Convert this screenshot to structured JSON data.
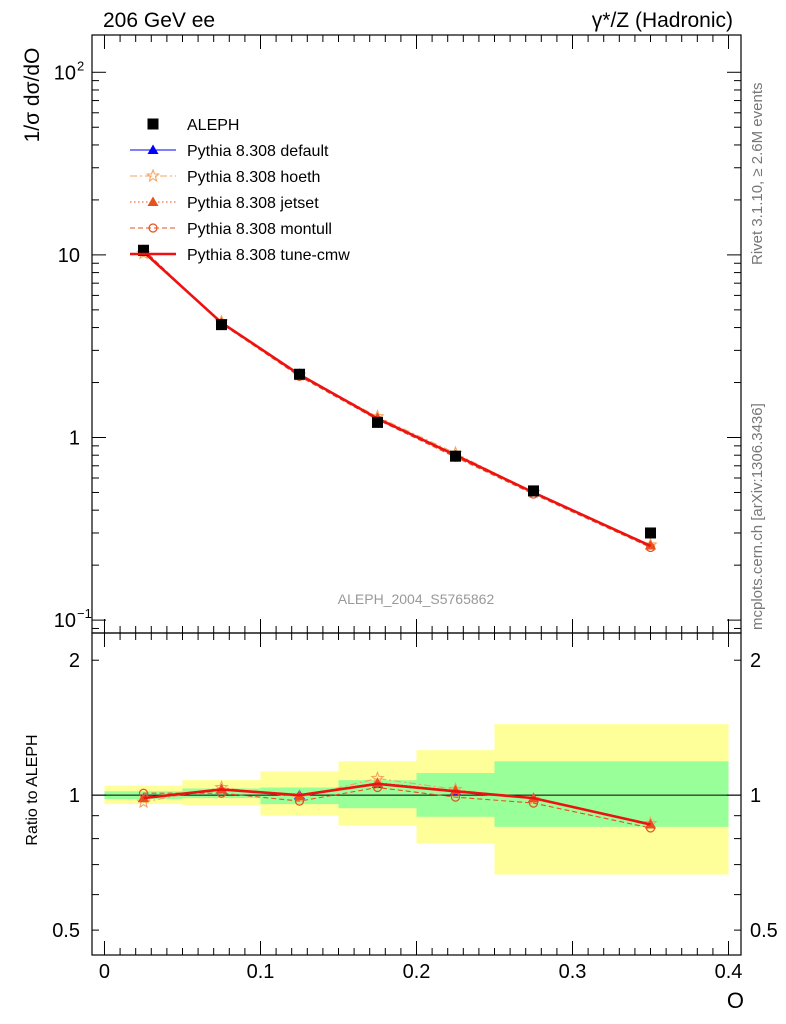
{
  "header": {
    "left_label": "206 GeV ee",
    "right_label": "γ*/Z (Hadronic)"
  },
  "side_labels": {
    "rivet": "Rivet 3.1.10, ≥ 2.6M events",
    "mcplots": "mcplots.cern.ch [arXiv:1306.3436]"
  },
  "watermark": "ALEPH_2004_S5765862",
  "chart_data": [
    {
      "type": "line",
      "panel": "main",
      "ylabel": "1/σ  dσ/dO",
      "yscale": "log",
      "ylim": [
        0.085,
        160
      ],
      "xlim": [
        -0.008,
        0.408
      ],
      "y_ticks": [
        {
          "value": 0.1,
          "label": "10",
          "exp": "−1"
        },
        {
          "value": 1,
          "label": "1",
          "exp": ""
        },
        {
          "value": 10,
          "label": "10",
          "exp": ""
        },
        {
          "value": 100,
          "label": "10",
          "exp": "2"
        }
      ],
      "legend_position": "top-left",
      "x": [
        0.025,
        0.075,
        0.125,
        0.175,
        0.225,
        0.275,
        0.35
      ],
      "data": {
        "name": "ALEPH",
        "color": "#000000",
        "values": [
          10.6,
          4.15,
          2.22,
          1.21,
          0.79,
          0.51,
          0.3
        ]
      },
      "series": [
        {
          "name": "Pythia 8.308 default",
          "color": "#0000ff",
          "style": "solid",
          "marker": "triangle",
          "values": [
            10.4,
            4.25,
            2.22,
            1.27,
            0.8,
            0.5,
            0.256
          ]
        },
        {
          "name": "Pythia 8.308 hoeth",
          "color": "#f4a460",
          "style": "dashdot",
          "marker": "star",
          "values": [
            10.2,
            4.3,
            2.2,
            1.3,
            0.82,
            0.5,
            0.258
          ]
        },
        {
          "name": "Pythia 8.308 jetset",
          "color": "#e8501e",
          "style": "dotted",
          "marker": "triangle",
          "values": [
            10.4,
            4.25,
            2.21,
            1.28,
            0.8,
            0.5,
            0.256
          ]
        },
        {
          "name": "Pythia 8.308 montull",
          "color": "#e8501e",
          "style": "dashed",
          "marker": "circle",
          "values": [
            10.7,
            4.2,
            2.16,
            1.25,
            0.78,
            0.49,
            0.25
          ]
        },
        {
          "name": "Pythia 8.308 tune-cmw",
          "color": "#ee1111",
          "style": "solid-thick",
          "marker": "none",
          "values": [
            10.4,
            4.25,
            2.21,
            1.27,
            0.8,
            0.5,
            0.255
          ]
        }
      ]
    },
    {
      "type": "line",
      "panel": "ratio",
      "xlabel": "O",
      "ylabel": "Ratio to ALEPH",
      "yscale": "log",
      "ylim": [
        0.44,
        2.3
      ],
      "xlim": [
        -0.008,
        0.408
      ],
      "y_ticks": [
        {
          "value": 0.5,
          "label": "0.5"
        },
        {
          "value": 1,
          "label": "1"
        },
        {
          "value": 2,
          "label": "2"
        }
      ],
      "x_ticks": [
        {
          "value": 0,
          "label": "0"
        },
        {
          "value": 0.1,
          "label": "0.1"
        },
        {
          "value": 0.2,
          "label": "0.2"
        },
        {
          "value": 0.3,
          "label": "0.3"
        },
        {
          "value": 0.4,
          "label": "0.4"
        }
      ],
      "bands": [
        {
          "x0": 0.0,
          "x1": 0.05,
          "inner": [
            0.98,
            1.02
          ],
          "outer": [
            0.955,
            1.05
          ]
        },
        {
          "x0": 0.05,
          "x1": 0.1,
          "inner": [
            0.985,
            1.035
          ],
          "outer": [
            0.95,
            1.08
          ]
        },
        {
          "x0": 0.1,
          "x1": 0.15,
          "inner": [
            0.955,
            1.04
          ],
          "outer": [
            0.9,
            1.13
          ]
        },
        {
          "x0": 0.15,
          "x1": 0.2,
          "inner": [
            0.935,
            1.08
          ],
          "outer": [
            0.855,
            1.19
          ]
        },
        {
          "x0": 0.2,
          "x1": 0.25,
          "inner": [
            0.895,
            1.12
          ],
          "outer": [
            0.78,
            1.26
          ]
        },
        {
          "x0": 0.25,
          "x1": 0.4,
          "inner": [
            0.85,
            1.19
          ],
          "outer": [
            0.665,
            1.44
          ]
        }
      ],
      "x": [
        0.025,
        0.075,
        0.125,
        0.175,
        0.225,
        0.275,
        0.35
      ],
      "series": [
        {
          "name": "Pythia 8.308 default",
          "color": "#0000ff",
          "style": "solid",
          "marker": "triangle",
          "values": [
            0.985,
            1.03,
            1.0,
            1.06,
            1.02,
            0.985,
            0.86
          ]
        },
        {
          "name": "Pythia 8.308 hoeth",
          "color": "#f4a460",
          "style": "dashdot",
          "marker": "star",
          "values": [
            0.965,
            1.04,
            0.99,
            1.09,
            1.03,
            0.98,
            0.865
          ]
        },
        {
          "name": "Pythia 8.308 jetset",
          "color": "#e8501e",
          "style": "dotted",
          "marker": "triangle",
          "values": [
            0.985,
            1.03,
            0.995,
            1.065,
            1.025,
            0.985,
            0.86
          ]
        },
        {
          "name": "Pythia 8.308 montull",
          "color": "#e8501e",
          "style": "dashed",
          "marker": "circle",
          "values": [
            1.01,
            1.01,
            0.97,
            1.04,
            0.99,
            0.96,
            0.845
          ]
        },
        {
          "name": "Pythia 8.308 tune-cmw",
          "color": "#ee1111",
          "style": "solid-thick",
          "marker": "none",
          "values": [
            0.985,
            1.03,
            1.0,
            1.06,
            1.02,
            0.985,
            0.86
          ]
        }
      ]
    }
  ]
}
